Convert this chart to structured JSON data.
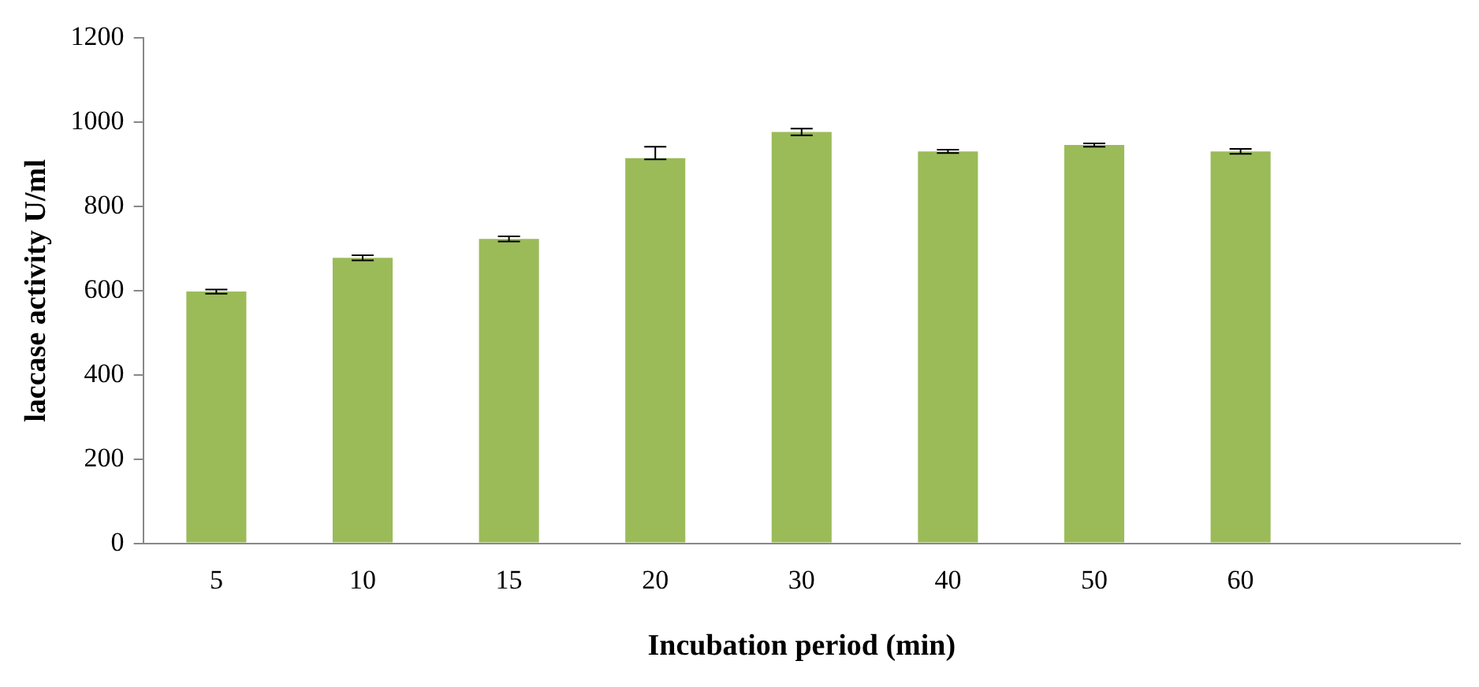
{
  "chart_data": {
    "type": "bar",
    "xlabel": "Incubation period (min)",
    "ylabel": "laccase activity U/ml",
    "categories": [
      "5",
      "10",
      "15",
      "20",
      "30",
      "40",
      "50",
      "60",
      null
    ],
    "values": [
      598,
      678,
      723,
      915,
      977,
      931,
      946,
      931,
      null
    ],
    "errors": [
      5,
      6,
      6,
      [
        912,
        942
      ],
      8,
      4,
      4,
      6,
      null
    ],
    "color": "#9bbb59",
    "ylim": [
      0,
      1200
    ],
    "yticks": [
      0,
      200,
      400,
      600,
      800,
      1000,
      1200
    ],
    "grid": false,
    "legend": false
  }
}
